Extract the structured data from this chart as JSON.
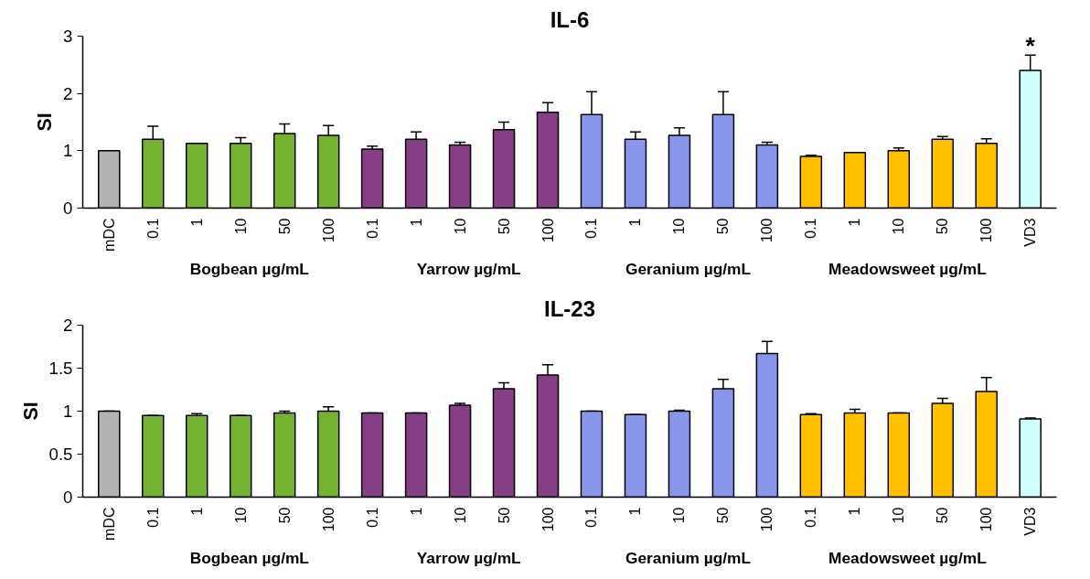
{
  "chart_data": [
    {
      "type": "bar",
      "title": "IL-6",
      "ylabel": "SI",
      "categories": [
        "mDC",
        "0.1",
        "1",
        "10",
        "50",
        "100",
        "0.1",
        "1",
        "10",
        "50",
        "100",
        "0.1",
        "1",
        "10",
        "50",
        "100",
        "0.1",
        "1",
        "10",
        "50",
        "100",
        "VD3"
      ],
      "values": [
        1.0,
        1.2,
        1.13,
        1.13,
        1.3,
        1.27,
        1.03,
        1.2,
        1.1,
        1.37,
        1.67,
        1.63,
        1.2,
        1.27,
        1.63,
        1.1,
        0.9,
        0.97,
        1.0,
        1.2,
        1.13,
        2.4
      ],
      "errors": [
        [
          1.0,
          1.0
        ],
        [
          1.2,
          1.43
        ],
        [
          1.13,
          1.13
        ],
        [
          1.13,
          1.23
        ],
        [
          1.3,
          1.47
        ],
        [
          1.27,
          1.44
        ],
        [
          1.03,
          1.08
        ],
        [
          1.2,
          1.33
        ],
        [
          1.1,
          1.15
        ],
        [
          1.37,
          1.5
        ],
        [
          1.67,
          1.84
        ],
        [
          1.63,
          2.03
        ],
        [
          1.2,
          1.33
        ],
        [
          1.27,
          1.4
        ],
        [
          1.63,
          2.03
        ],
        [
          1.1,
          1.15
        ],
        [
          0.9,
          0.92
        ],
        [
          0.97,
          0.97
        ],
        [
          1.0,
          1.05
        ],
        [
          1.2,
          1.25
        ],
        [
          1.13,
          1.21
        ],
        [
          2.4,
          2.67
        ]
      ],
      "colors": [
        "#b2b2b2",
        "#74b232",
        "#74b232",
        "#74b232",
        "#74b232",
        "#74b232",
        "#883e86",
        "#883e86",
        "#883e86",
        "#883e86",
        "#883e86",
        "#8796ea",
        "#8796ea",
        "#8796ea",
        "#8796ea",
        "#8796ea",
        "#ffc000",
        "#ffc000",
        "#ffc000",
        "#ffc000",
        "#ffc000",
        "#ccffff"
      ],
      "ylim": [
        0,
        3
      ],
      "yticks": [
        0,
        1,
        2,
        3
      ],
      "grid": false,
      "annotations": [
        "Bogbean µg/mL",
        "Yarrow µg/mL",
        "Geranium µg/mL",
        "Meadowsweet µg/mL",
        "*"
      ]
    },
    {
      "type": "bar",
      "title": "IL-23",
      "ylabel": "SI",
      "categories": [
        "mDC",
        "0.1",
        "1",
        "10",
        "50",
        "100",
        "0.1",
        "1",
        "10",
        "50",
        "100",
        "0.1",
        "1",
        "10",
        "50",
        "100",
        "0.1",
        "1",
        "10",
        "50",
        "100",
        "VD3"
      ],
      "values": [
        1.0,
        0.95,
        0.95,
        0.95,
        0.98,
        1.0,
        0.98,
        0.98,
        1.07,
        1.26,
        1.42,
        1.0,
        0.96,
        1.0,
        1.26,
        1.67,
        0.96,
        0.98,
        0.98,
        1.09,
        1.23,
        0.91
      ],
      "errors": [
        [
          0.98,
          1.0
        ],
        [
          0.94,
          0.95
        ],
        [
          0.95,
          0.97
        ],
        [
          0.95,
          0.95
        ],
        [
          0.98,
          1.0
        ],
        [
          1.0,
          1.05
        ],
        [
          0.98,
          0.98
        ],
        [
          0.98,
          0.98
        ],
        [
          1.06,
          1.09
        ],
        [
          1.26,
          1.33
        ],
        [
          1.42,
          1.54
        ],
        [
          0.99,
          1.0
        ],
        [
          0.96,
          0.96
        ],
        [
          1.0,
          1.01
        ],
        [
          1.26,
          1.37
        ],
        [
          1.67,
          1.81
        ],
        [
          0.95,
          0.97
        ],
        [
          0.98,
          1.02
        ],
        [
          0.98,
          0.98
        ],
        [
          1.09,
          1.15
        ],
        [
          1.23,
          1.39
        ],
        [
          0.91,
          0.92
        ]
      ],
      "colors": [
        "#b2b2b2",
        "#74b232",
        "#74b232",
        "#74b232",
        "#74b232",
        "#74b232",
        "#883e86",
        "#883e86",
        "#883e86",
        "#883e86",
        "#883e86",
        "#8796ea",
        "#8796ea",
        "#8796ea",
        "#8796ea",
        "#8796ea",
        "#ffc000",
        "#ffc000",
        "#ffc000",
        "#ffc000",
        "#ffc000",
        "#ccffff"
      ],
      "ylim": [
        0,
        2
      ],
      "yticks": [
        0,
        0.5,
        1,
        1.5,
        2
      ],
      "grid": false,
      "annotations": [
        "Bogbean µg/mL",
        "Yarrow µg/mL",
        "Geranium µg/mL",
        "Meadowsweet µg/mL"
      ]
    }
  ]
}
